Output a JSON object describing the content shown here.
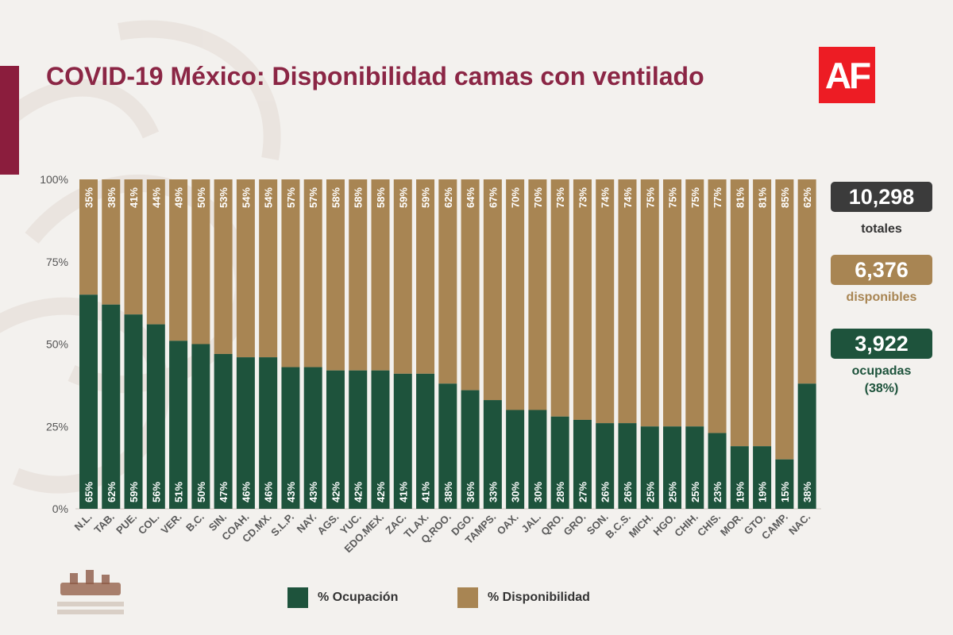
{
  "header": {
    "title": "COVID-19 México: Disponibilidad camas con ventilado",
    "logo_text": "AF"
  },
  "summary": {
    "totales_value": "10,298",
    "totales_label": "totales",
    "disponibles_value": "6,376",
    "disponibles_label": "disponibles",
    "ocupadas_value": "3,922",
    "ocupadas_label": "ocupadas",
    "ocupadas_pct": "(38%)"
  },
  "legend": {
    "ocupacion": "% Ocupación",
    "disponibilidad": "% Disponibilidad"
  },
  "colors": {
    "ocupacion": "#1e533c",
    "disponibilidad": "#a88553",
    "title": "#8b2645",
    "totales_box": "#3b3b3b"
  },
  "chart_data": {
    "type": "bar",
    "stacked": true,
    "categories": [
      "N.L.",
      "TAB.",
      "PUE.",
      "COL.",
      "VER.",
      "B.C.",
      "SIN.",
      "COAH.",
      "CD.MX.",
      "S.L.P.",
      "NAY.",
      "AGS.",
      "YUC.",
      "EDO.MEX.",
      "ZAC.",
      "TLAX.",
      "Q.ROO.",
      "DGO.",
      "TAMPS.",
      "OAX.",
      "JAL.",
      "QRO.",
      "GRO.",
      "SON.",
      "B.C.S.",
      "MICH.",
      "HGO.",
      "CHIH.",
      "CHIS.",
      "MOR.",
      "GTO.",
      "CAMP.",
      "NAC."
    ],
    "series": [
      {
        "name": "% Ocupación",
        "values": [
          65,
          62,
          59,
          56,
          51,
          50,
          47,
          46,
          46,
          43,
          43,
          42,
          42,
          42,
          41,
          41,
          38,
          36,
          33,
          30,
          30,
          28,
          27,
          26,
          26,
          25,
          25,
          25,
          23,
          19,
          19,
          15,
          38
        ]
      },
      {
        "name": "% Disponibilidad",
        "values": [
          35,
          38,
          41,
          44,
          49,
          50,
          53,
          54,
          54,
          57,
          57,
          58,
          58,
          58,
          59,
          59,
          62,
          64,
          67,
          70,
          70,
          73,
          73,
          74,
          74,
          75,
          75,
          75,
          77,
          81,
          81,
          85,
          62
        ]
      }
    ],
    "yticks": [
      "0%",
      "25%",
      "50%",
      "75%",
      "100%"
    ],
    "ylim": [
      0,
      100
    ],
    "legend_position": "bottom"
  }
}
